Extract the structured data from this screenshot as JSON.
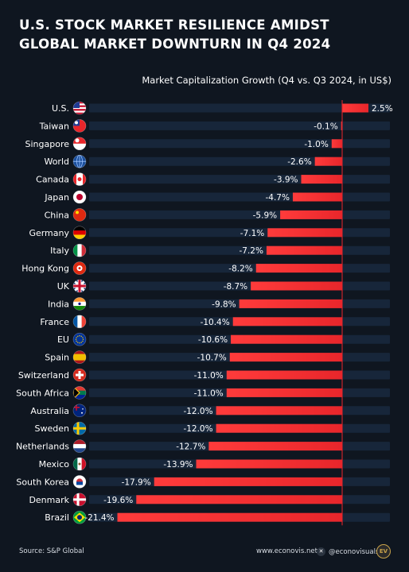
{
  "title": "U.S. STOCK MARKET RESILIENCE AMIDST\nGLOBAL MARKET DOWNTURN IN Q4 2024",
  "footer": {
    "source": "Source: S&P Global",
    "site": "www.econovis.net",
    "handle": "@econovisuals",
    "x_icon": "x-logo-icon",
    "logo_text": "EV"
  },
  "colors": {
    "background": "#0f1620",
    "bar": "#e8262b",
    "track": "#17263a",
    "zero_line": "#e8262b"
  },
  "chart_data": {
    "type": "bar",
    "orientation": "horizontal",
    "subtitle": "Market Capitalization Growth (Q4 vs. Q3 2024, in US$)",
    "unit": "%",
    "categories": [
      "U.S.",
      "Taiwan",
      "Singapore",
      "World",
      "Canada",
      "Japan",
      "China",
      "Germany",
      "Italy",
      "Hong Kong",
      "UK",
      "India",
      "France",
      "EU",
      "Spain",
      "Switzerland",
      "South Africa",
      "Australia",
      "Sweden",
      "Netherlands",
      "Mexico",
      "South Korea",
      "Denmark",
      "Brazil"
    ],
    "values": [
      2.5,
      -0.1,
      -1.0,
      -2.6,
      -3.9,
      -4.7,
      -5.9,
      -7.1,
      -7.2,
      -8.2,
      -8.7,
      -9.8,
      -10.4,
      -10.6,
      -10.7,
      -11.0,
      -11.0,
      -12.0,
      -12.0,
      -12.7,
      -13.9,
      -17.9,
      -19.6,
      -21.4
    ],
    "value_labels": [
      "2.5%",
      "-0.1%",
      "-1.0%",
      "-2.6%",
      "-3.9%",
      "-4.7%",
      "-5.9%",
      "-7.1%",
      "-7.2%",
      "-8.2%",
      "-8.7%",
      "-9.8%",
      "-10.4%",
      "-10.6%",
      "-10.7%",
      "-11.0%",
      "-11.0%",
      "-12.0%",
      "-12.0%",
      "-12.7%",
      "-13.9%",
      "-17.9%",
      "-19.6%",
      "-21.4%"
    ],
    "flag_icons": [
      "us-flag-icon",
      "taiwan-flag-icon",
      "singapore-flag-icon",
      "globe-icon",
      "canada-flag-icon",
      "japan-flag-icon",
      "china-flag-icon",
      "germany-flag-icon",
      "italy-flag-icon",
      "hong-kong-flag-icon",
      "uk-flag-icon",
      "india-flag-icon",
      "france-flag-icon",
      "eu-flag-icon",
      "spain-flag-icon",
      "switzerland-flag-icon",
      "south-africa-flag-icon",
      "australia-flag-icon",
      "sweden-flag-icon",
      "netherlands-flag-icon",
      "mexico-flag-icon",
      "south-korea-flag-icon",
      "denmark-flag-icon",
      "brazil-flag-icon"
    ],
    "xlim": [
      -21.4,
      2.5
    ],
    "grid": false,
    "legend": "none"
  }
}
